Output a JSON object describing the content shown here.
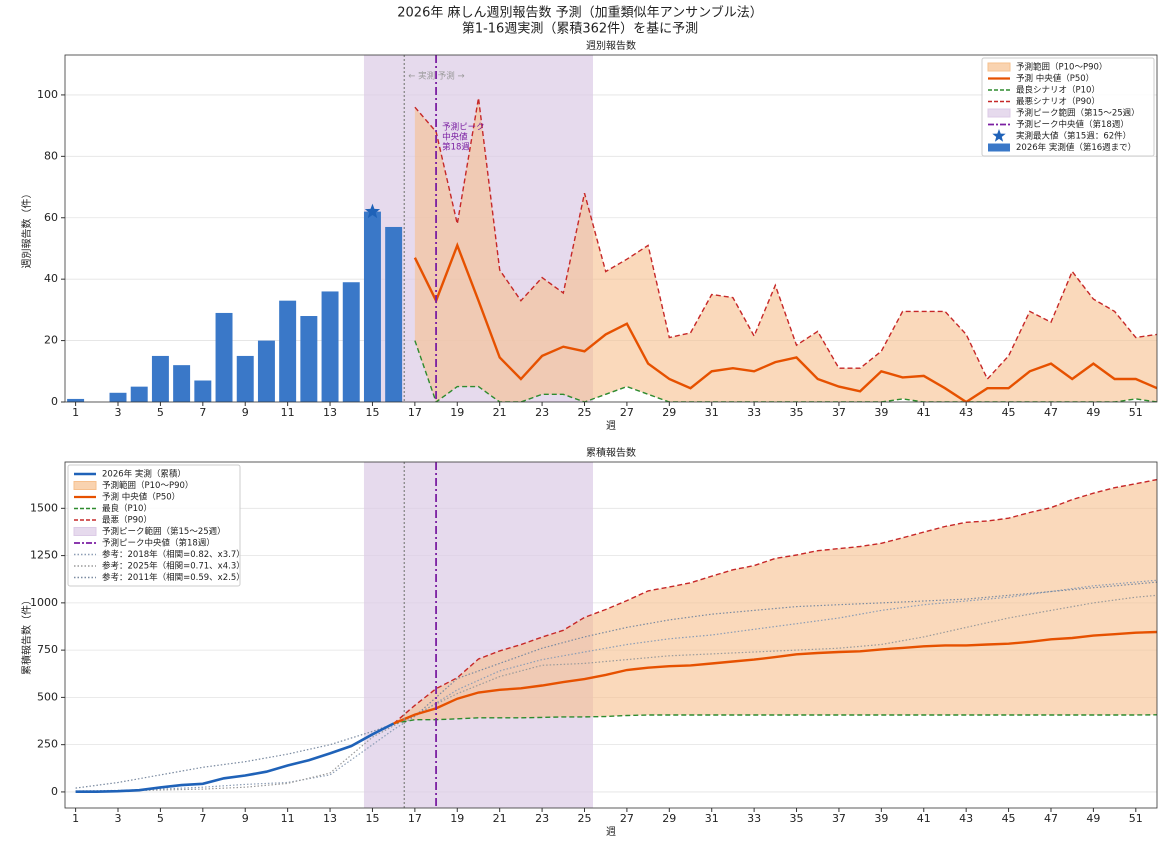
{
  "title": "2026年 麻しん週別報告数 予測（加重類似年アンサンブル法）",
  "subtitle": "第1-16週実測（累積362件）を基に予測",
  "chart_data": [
    {
      "type": "bar",
      "title": "週別報告数",
      "xlabel": "週",
      "ylabel": "週別報告数（件）",
      "xlim": [
        0.5,
        52
      ],
      "ylim": [
        0,
        113
      ],
      "xticks": [
        1,
        3,
        5,
        7,
        9,
        11,
        13,
        15,
        17,
        19,
        21,
        23,
        25,
        27,
        29,
        31,
        33,
        35,
        37,
        39,
        41,
        43,
        45,
        47,
        49,
        51
      ],
      "yticks": [
        0,
        20,
        40,
        60,
        80,
        100
      ],
      "grid": true,
      "legend": "upper right",
      "actual": {
        "name": "2026年 実測値（第16週まで）",
        "color": "#3a78c8",
        "x": [
          1,
          2,
          3,
          4,
          5,
          6,
          7,
          8,
          9,
          10,
          11,
          12,
          13,
          14,
          15,
          16
        ],
        "values": [
          1,
          0,
          3,
          5,
          15,
          12,
          7,
          29,
          15,
          20,
          33,
          28,
          36,
          39,
          62,
          57
        ]
      },
      "max_marker": {
        "name": "実測最大値（第15週：62件）",
        "color": "#1f62b8",
        "x": 15,
        "value": 62
      },
      "forecast": {
        "x": [
          17,
          18,
          19,
          20,
          21,
          22,
          23,
          24,
          25,
          26,
          27,
          28,
          29,
          30,
          31,
          32,
          33,
          34,
          35,
          36,
          37,
          38,
          39,
          40,
          41,
          42,
          43,
          44,
          45,
          46,
          47,
          48,
          49,
          50,
          51,
          52
        ],
        "band": {
          "name": "予測範囲（P10〜P90）",
          "color": "#f6c08e"
        },
        "median": {
          "name": "予測 中央値（P50）",
          "color": "#e65100",
          "values": [
            47,
            33,
            51,
            33,
            14.5,
            7.5,
            15,
            18,
            16.5,
            22,
            25.5,
            12.5,
            7.5,
            4.5,
            10,
            11,
            10,
            13,
            14.5,
            7.5,
            5,
            3.5,
            10,
            8,
            8.5,
            4.5,
            0,
            4.5,
            4.5,
            10,
            12.5,
            7.5,
            12.5,
            7.5,
            7.5,
            4.5
          ]
        },
        "p10": {
          "name": "最良シナリオ（P10）",
          "color": "#2e8b2e",
          "values": [
            20,
            0,
            5,
            5,
            0,
            0,
            2.5,
            2.5,
            0,
            2.5,
            5,
            2.5,
            0,
            0,
            0,
            0,
            0,
            0,
            0,
            0,
            0,
            0,
            0,
            1,
            0,
            0,
            0,
            0,
            0,
            0,
            0,
            0,
            0,
            0,
            1,
            0
          ]
        },
        "p90": {
          "name": "最悪シナリオ（P90）",
          "color": "#c62828",
          "values": [
            96,
            88,
            58,
            99,
            43,
            33,
            40.5,
            35.5,
            68,
            42.5,
            46.5,
            51,
            21,
            22.5,
            35,
            34,
            21.5,
            38,
            18.5,
            23,
            11,
            11,
            16.5,
            29.5,
            29.5,
            29.5,
            22,
            7.5,
            15,
            29.5,
            26,
            42.5,
            33.5,
            29.5,
            21,
            22
          ]
        }
      },
      "peak_range": {
        "name": "予測ピーク範囲（第15〜25週）",
        "color": "#dccbe6",
        "range": [
          14.6,
          25.4
        ]
      },
      "peak_median": {
        "name": "予測ピーク中央値（第18週）",
        "color": "#7b1fa2",
        "x": 18
      },
      "split_x": 16.5,
      "split_note": "← 実測  予測 →",
      "peak_note": [
        "予測ピーク",
        "中央値",
        "第18週"
      ]
    },
    {
      "type": "line",
      "title": "累積報告数",
      "xlabel": "週",
      "ylabel": "累積報告数（件）",
      "xlim": [
        0.5,
        52
      ],
      "ylim": [
        -85,
        1745
      ],
      "xticks": [
        1,
        3,
        5,
        7,
        9,
        11,
        13,
        15,
        17,
        19,
        21,
        23,
        25,
        27,
        29,
        31,
        33,
        35,
        37,
        39,
        41,
        43,
        45,
        47,
        49,
        51
      ],
      "yticks": [
        0,
        250,
        500,
        750,
        1000,
        1250,
        1500
      ],
      "grid": true,
      "legend": "upper left",
      "actual": {
        "name": "2026年 実測（累積）",
        "color": "#1f62b8",
        "x": [
          1,
          2,
          3,
          4,
          5,
          6,
          7,
          8,
          9,
          10,
          11,
          12,
          13,
          14,
          15,
          16
        ],
        "values": [
          1,
          1,
          4,
          9,
          24,
          36,
          43,
          72,
          87,
          107,
          140,
          168,
          204,
          243,
          305,
          362
        ]
      },
      "forecast": {
        "x": [
          16,
          17,
          18,
          19,
          20,
          21,
          22,
          23,
          24,
          25,
          26,
          27,
          28,
          29,
          30,
          31,
          32,
          33,
          34,
          35,
          36,
          37,
          38,
          39,
          40,
          41,
          42,
          43,
          44,
          45,
          46,
          47,
          48,
          49,
          50,
          51,
          52
        ],
        "band": {
          "name": "予測範囲（P10〜P90）",
          "color": "#f6c08e"
        },
        "median": {
          "name": "予測 中央値（P50）",
          "color": "#e65100",
          "values": [
            362,
            409,
            442,
            493,
            526,
            540,
            548,
            563,
            581,
            597,
            619,
            645,
            657,
            665,
            669,
            679,
            690,
            700,
            713,
            728,
            735,
            740,
            744,
            754,
            762,
            770,
            775,
            775,
            780,
            784,
            794,
            807,
            814,
            827,
            834,
            842,
            846
          ]
        },
        "p10": {
          "name": "最良（P10）",
          "color": "#2e8b2e",
          "values": [
            362,
            382,
            382,
            387,
            392,
            392,
            392,
            394,
            397,
            397,
            399,
            404,
            407,
            407,
            407,
            407,
            407,
            407,
            407,
            407,
            407,
            407,
            407,
            407,
            407,
            407,
            407,
            407,
            407,
            407,
            407,
            407,
            407,
            407,
            407,
            407,
            408
          ]
        },
        "p90": {
          "name": "最悪（P90）",
          "color": "#c62828",
          "values": [
            362,
            458,
            546,
            604,
            703,
            746,
            779,
            819,
            855,
            923,
            965,
            1012,
            1063,
            1084,
            1106,
            1141,
            1175,
            1197,
            1235,
            1253,
            1276,
            1287,
            1298,
            1315,
            1344,
            1374,
            1404,
            1426,
            1433,
            1448,
            1478,
            1504,
            1546,
            1580,
            1609,
            1630,
            1652
          ]
        }
      },
      "peak_range": {
        "name": "予測ピーク範囲（第15〜25週）",
        "color": "#dccbe6",
        "range": [
          14.6,
          25.4
        ]
      },
      "peak_median": {
        "name": "予測ピーク中央値（第18週）",
        "color": "#7b1fa2",
        "x": 18
      },
      "split_x": 16.5,
      "ref_x": [
        1,
        3,
        5,
        7,
        9,
        11,
        13,
        15,
        16,
        17,
        19,
        21,
        23,
        25,
        27,
        29,
        31,
        33,
        35,
        37,
        39,
        41,
        43,
        45,
        47,
        49,
        51,
        52
      ],
      "references": [
        {
          "name": "参考：2018年（相関=0.82、x3.7）",
          "color": "#8c9db5",
          "values": [
            5,
            8,
            15,
            25,
            40,
            50,
            90,
            250,
            330,
            400,
            540,
            640,
            700,
            740,
            780,
            810,
            830,
            860,
            890,
            920,
            960,
            990,
            1010,
            1030,
            1060,
            1090,
            1110,
            1120
          ]
        },
        {
          "name": "参考：2025年（相関=0.71、x4.3）",
          "color": "#9a9a9a",
          "values": [
            0,
            5,
            10,
            15,
            25,
            45,
            100,
            290,
            350,
            410,
            520,
            610,
            670,
            680,
            700,
            720,
            730,
            740,
            750,
            760,
            780,
            820,
            870,
            920,
            960,
            1000,
            1030,
            1040
          ]
        },
        {
          "name": "参考：2011年（相関=0.59、x2.5）",
          "color": "#7a8aa0",
          "values": [
            20,
            50,
            90,
            130,
            160,
            200,
            250,
            320,
            360,
            400,
            600,
            680,
            760,
            820,
            870,
            910,
            940,
            960,
            980,
            990,
            1000,
            1010,
            1020,
            1040,
            1060,
            1080,
            1100,
            1110
          ]
        }
      ]
    }
  ]
}
